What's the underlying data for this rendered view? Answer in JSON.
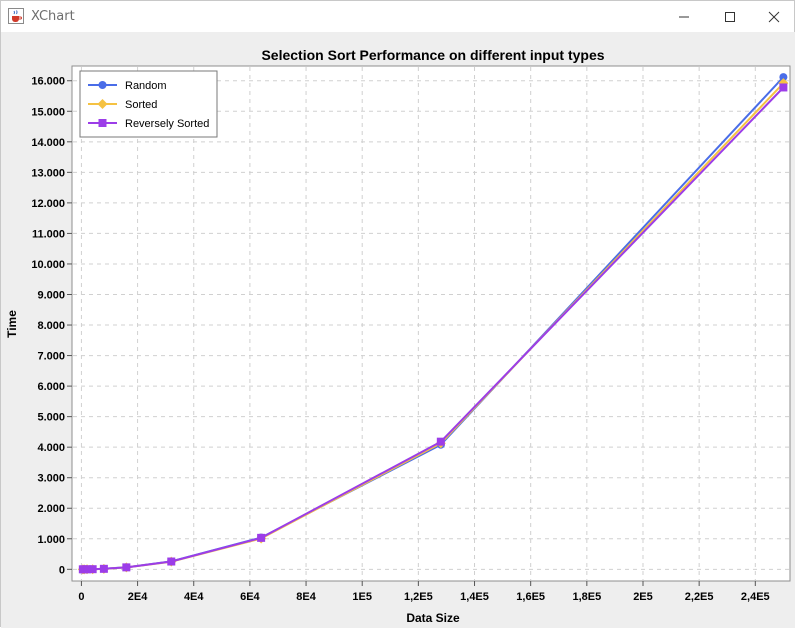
{
  "window": {
    "title": "XChart",
    "app_icon": "java-cup-icon",
    "controls": [
      "minimize-icon",
      "maximize-icon",
      "close-icon"
    ]
  },
  "chart_data": {
    "type": "line",
    "title": "Selection Sort Performance on different input types",
    "xlabel": "Data Size",
    "ylabel": "Time",
    "xlim": [
      -3000,
      252000
    ],
    "ylim": [
      -350,
      16450
    ],
    "x_ticks": [
      {
        "value": 0,
        "label": "0"
      },
      {
        "value": 20000,
        "label": "2E4"
      },
      {
        "value": 40000,
        "label": "4E4"
      },
      {
        "value": 60000,
        "label": "6E4"
      },
      {
        "value": 80000,
        "label": "8E4"
      },
      {
        "value": 100000,
        "label": "1E5"
      },
      {
        "value": 120000,
        "label": "1,2E5"
      },
      {
        "value": 140000,
        "label": "1,4E5"
      },
      {
        "value": 160000,
        "label": "1,6E5"
      },
      {
        "value": 180000,
        "label": "1,8E5"
      },
      {
        "value": 200000,
        "label": "2E5"
      },
      {
        "value": 220000,
        "label": "2,2E5"
      },
      {
        "value": 240000,
        "label": "2,4E5"
      }
    ],
    "y_ticks": [
      {
        "value": 0,
        "label": "0"
      },
      {
        "value": 1000,
        "label": "1.000"
      },
      {
        "value": 2000,
        "label": "2.000"
      },
      {
        "value": 3000,
        "label": "3.000"
      },
      {
        "value": 4000,
        "label": "4.000"
      },
      {
        "value": 5000,
        "label": "5.000"
      },
      {
        "value": 6000,
        "label": "6.000"
      },
      {
        "value": 7000,
        "label": "7.000"
      },
      {
        "value": 8000,
        "label": "8.000"
      },
      {
        "value": 9000,
        "label": "9.000"
      },
      {
        "value": 10000,
        "label": "10.000"
      },
      {
        "value": 11000,
        "label": "11.000"
      },
      {
        "value": 12000,
        "label": "12.000"
      },
      {
        "value": 13000,
        "label": "13.000"
      },
      {
        "value": 14000,
        "label": "14.000"
      },
      {
        "value": 15000,
        "label": "15.000"
      },
      {
        "value": 16000,
        "label": "16.000"
      }
    ],
    "grid": true,
    "legend_position": "top-left",
    "series": [
      {
        "name": "Random",
        "color": "#4a6de8",
        "marker": "circle",
        "x": [
          500,
          1000,
          2000,
          4000,
          8000,
          16000,
          32000,
          64000,
          128000,
          250000
        ],
        "y": [
          0,
          0,
          1,
          4,
          16,
          65,
          260,
          1040,
          4080,
          16120
        ]
      },
      {
        "name": "Sorted",
        "color": "#f5c242",
        "marker": "diamond",
        "x": [
          500,
          1000,
          2000,
          4000,
          8000,
          16000,
          32000,
          64000,
          128000,
          250000
        ],
        "y": [
          0,
          0,
          1,
          4,
          15,
          62,
          250,
          1010,
          4130,
          15920
        ]
      },
      {
        "name": "Reversely Sorted",
        "color": "#9c3de8",
        "marker": "square",
        "x": [
          500,
          1000,
          2000,
          4000,
          8000,
          16000,
          32000,
          64000,
          128000,
          250000
        ],
        "y": [
          0,
          0,
          1,
          4,
          16,
          64,
          255,
          1030,
          4180,
          15780
        ]
      }
    ]
  }
}
